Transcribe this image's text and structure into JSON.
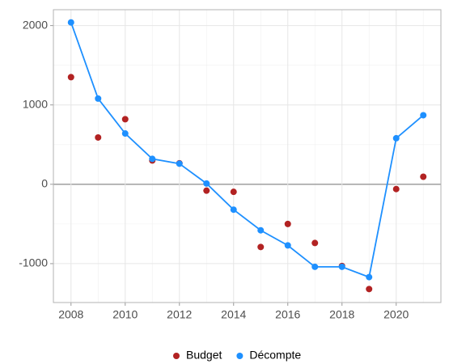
{
  "chart_data": {
    "type": "line",
    "x": [
      2008,
      2009,
      2010,
      2011,
      2012,
      2013,
      2014,
      2015,
      2016,
      2017,
      2018,
      2019,
      2020,
      2021
    ],
    "series": [
      {
        "name": "Budget",
        "color": "#b22222",
        "show_line": false,
        "values": [
          1350,
          590,
          820,
          300,
          265,
          -80,
          -95,
          -790,
          -500,
          -740,
          -1030,
          -1320,
          -60,
          95
        ]
      },
      {
        "name": "Décompte",
        "color": "#1e90ff",
        "show_line": true,
        "values": [
          2040,
          1080,
          640,
          320,
          260,
          10,
          -320,
          -580,
          -770,
          -1040,
          -1040,
          -1170,
          580,
          870
        ]
      }
    ],
    "xlim": [
      2007.35,
      2021.65
    ],
    "xticks": [
      2008,
      2010,
      2012,
      2014,
      2016,
      2018,
      2020
    ],
    "ylim": [
      -1490,
      2200
    ],
    "yticks": [
      -1000,
      0,
      1000,
      2000
    ],
    "grid": true,
    "legend": "bottom"
  }
}
